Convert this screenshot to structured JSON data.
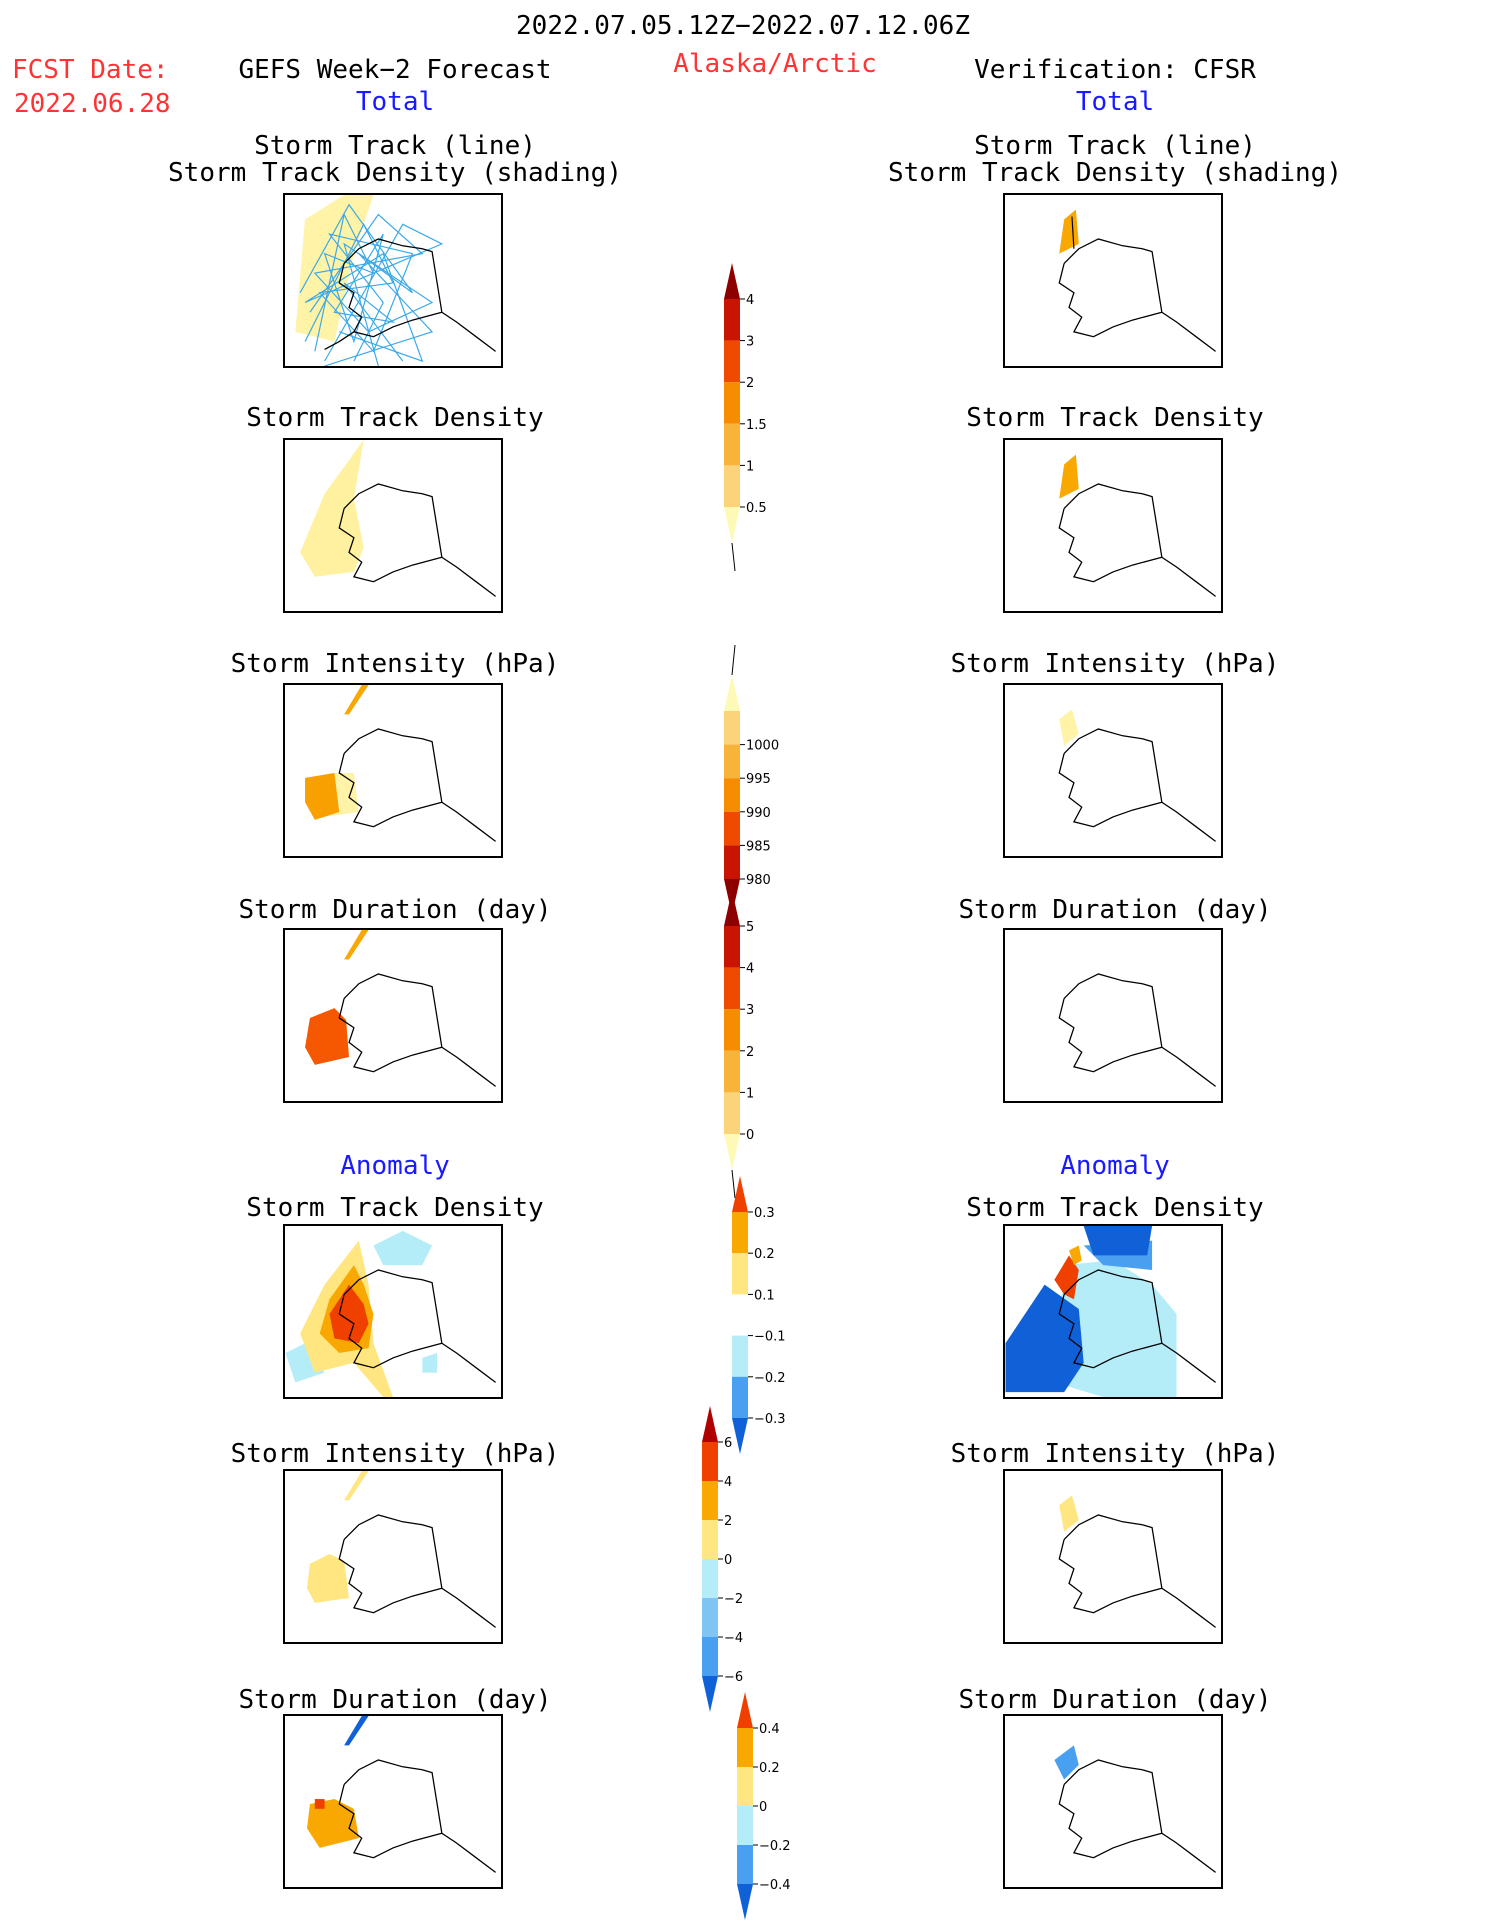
{
  "header": {
    "period": "2022.07.05.12Z−2022.07.12.06Z",
    "fcst_label": "FCST Date:",
    "fcst_date": "2022.06.28",
    "left_title": "GEFS Week−2 Forecast",
    "region": "Alaska/Arctic",
    "right_title": "Verification: CFSR",
    "total": "Total",
    "anomaly": "Anomaly"
  },
  "panels": {
    "track_line_1": "Storm Track (line)",
    "track_line_2": "Storm Track Density (shading)",
    "density": "Storm Track Density",
    "intensity": "Storm Intensity (hPa)",
    "duration": "Storm Duration (day)"
  },
  "colorbars": {
    "density": {
      "colors": [
        "#fff9b8",
        "#fbd37a",
        "#f8b43a",
        "#f68c00",
        "#ef4a00",
        "#c81400",
        "#8e0000"
      ],
      "labels": [
        "0.5",
        "1",
        "1.5",
        "2",
        "3",
        "4"
      ]
    },
    "intensity": {
      "colors": [
        "#fff9b8",
        "#fbd37a",
        "#f8b43a",
        "#f68c00",
        "#ef4a00",
        "#c81400",
        "#8e0000"
      ],
      "labels": [
        "1000",
        "995",
        "990",
        "985",
        "980"
      ]
    },
    "duration": {
      "colors": [
        "#fff9b8",
        "#fbd37a",
        "#f8b43a",
        "#f68c00",
        "#ef4a00",
        "#c81400",
        "#8e0000"
      ],
      "labels": [
        "0",
        "1",
        "2",
        "3",
        "4",
        "5"
      ]
    },
    "anom_density": {
      "colors": [
        "#1060d8",
        "#4aa0f0",
        "#b4ecf8",
        "#ffffff",
        "#ffe680",
        "#f8a800",
        "#f04000"
      ],
      "labels": [
        "−0.3",
        "−0.2",
        "−0.1",
        "0.1",
        "0.2",
        "0.3"
      ]
    },
    "anom_intensity": {
      "colors": [
        "#1060d8",
        "#4aa0f0",
        "#80c4f4",
        "#b4ecf8",
        "#ffe680",
        "#f8a800",
        "#f04000",
        "#b00000"
      ],
      "labels": [
        "−6",
        "−4",
        "−2",
        "0",
        "2",
        "4",
        "6"
      ]
    },
    "anom_duration": {
      "colors": [
        "#1060d8",
        "#4aa0f0",
        "#b4ecf8",
        "#ffe680",
        "#f8a800",
        "#f04000"
      ],
      "labels": [
        "−0.4",
        "−0.2",
        "0",
        "0.2",
        "0.4"
      ]
    }
  }
}
